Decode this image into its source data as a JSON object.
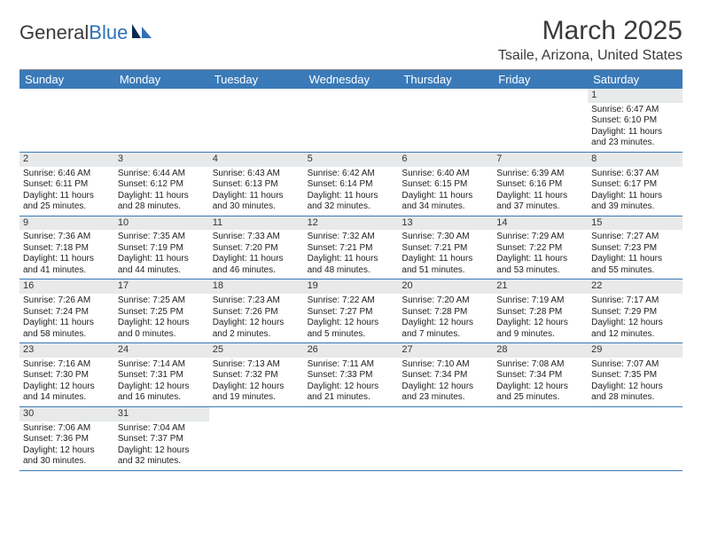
{
  "brand": {
    "word1": "General",
    "word2": "Blue"
  },
  "colors": {
    "header_bg": "#3a7ab8",
    "row_divider": "#3a7ab8",
    "datebar_bg": "#e7e9ea",
    "brand_blue": "#2f71b8",
    "text": "#222222"
  },
  "title": "March 2025",
  "location": "Tsaile, Arizona, United States",
  "day_headers": [
    "Sunday",
    "Monday",
    "Tuesday",
    "Wednesday",
    "Thursday",
    "Friday",
    "Saturday"
  ],
  "weeks": [
    [
      {
        "blank": true
      },
      {
        "blank": true
      },
      {
        "blank": true
      },
      {
        "blank": true
      },
      {
        "blank": true
      },
      {
        "blank": true
      },
      {
        "date": "1",
        "sunrise": "Sunrise: 6:47 AM",
        "sunset": "Sunset: 6:10 PM",
        "day1": "Daylight: 11 hours",
        "day2": "and 23 minutes."
      }
    ],
    [
      {
        "date": "2",
        "sunrise": "Sunrise: 6:46 AM",
        "sunset": "Sunset: 6:11 PM",
        "day1": "Daylight: 11 hours",
        "day2": "and 25 minutes."
      },
      {
        "date": "3",
        "sunrise": "Sunrise: 6:44 AM",
        "sunset": "Sunset: 6:12 PM",
        "day1": "Daylight: 11 hours",
        "day2": "and 28 minutes."
      },
      {
        "date": "4",
        "sunrise": "Sunrise: 6:43 AM",
        "sunset": "Sunset: 6:13 PM",
        "day1": "Daylight: 11 hours",
        "day2": "and 30 minutes."
      },
      {
        "date": "5",
        "sunrise": "Sunrise: 6:42 AM",
        "sunset": "Sunset: 6:14 PM",
        "day1": "Daylight: 11 hours",
        "day2": "and 32 minutes."
      },
      {
        "date": "6",
        "sunrise": "Sunrise: 6:40 AM",
        "sunset": "Sunset: 6:15 PM",
        "day1": "Daylight: 11 hours",
        "day2": "and 34 minutes."
      },
      {
        "date": "7",
        "sunrise": "Sunrise: 6:39 AM",
        "sunset": "Sunset: 6:16 PM",
        "day1": "Daylight: 11 hours",
        "day2": "and 37 minutes."
      },
      {
        "date": "8",
        "sunrise": "Sunrise: 6:37 AM",
        "sunset": "Sunset: 6:17 PM",
        "day1": "Daylight: 11 hours",
        "day2": "and 39 minutes."
      }
    ],
    [
      {
        "date": "9",
        "sunrise": "Sunrise: 7:36 AM",
        "sunset": "Sunset: 7:18 PM",
        "day1": "Daylight: 11 hours",
        "day2": "and 41 minutes."
      },
      {
        "date": "10",
        "sunrise": "Sunrise: 7:35 AM",
        "sunset": "Sunset: 7:19 PM",
        "day1": "Daylight: 11 hours",
        "day2": "and 44 minutes."
      },
      {
        "date": "11",
        "sunrise": "Sunrise: 7:33 AM",
        "sunset": "Sunset: 7:20 PM",
        "day1": "Daylight: 11 hours",
        "day2": "and 46 minutes."
      },
      {
        "date": "12",
        "sunrise": "Sunrise: 7:32 AM",
        "sunset": "Sunset: 7:21 PM",
        "day1": "Daylight: 11 hours",
        "day2": "and 48 minutes."
      },
      {
        "date": "13",
        "sunrise": "Sunrise: 7:30 AM",
        "sunset": "Sunset: 7:21 PM",
        "day1": "Daylight: 11 hours",
        "day2": "and 51 minutes."
      },
      {
        "date": "14",
        "sunrise": "Sunrise: 7:29 AM",
        "sunset": "Sunset: 7:22 PM",
        "day1": "Daylight: 11 hours",
        "day2": "and 53 minutes."
      },
      {
        "date": "15",
        "sunrise": "Sunrise: 7:27 AM",
        "sunset": "Sunset: 7:23 PM",
        "day1": "Daylight: 11 hours",
        "day2": "and 55 minutes."
      }
    ],
    [
      {
        "date": "16",
        "sunrise": "Sunrise: 7:26 AM",
        "sunset": "Sunset: 7:24 PM",
        "day1": "Daylight: 11 hours",
        "day2": "and 58 minutes."
      },
      {
        "date": "17",
        "sunrise": "Sunrise: 7:25 AM",
        "sunset": "Sunset: 7:25 PM",
        "day1": "Daylight: 12 hours",
        "day2": "and 0 minutes."
      },
      {
        "date": "18",
        "sunrise": "Sunrise: 7:23 AM",
        "sunset": "Sunset: 7:26 PM",
        "day1": "Daylight: 12 hours",
        "day2": "and 2 minutes."
      },
      {
        "date": "19",
        "sunrise": "Sunrise: 7:22 AM",
        "sunset": "Sunset: 7:27 PM",
        "day1": "Daylight: 12 hours",
        "day2": "and 5 minutes."
      },
      {
        "date": "20",
        "sunrise": "Sunrise: 7:20 AM",
        "sunset": "Sunset: 7:28 PM",
        "day1": "Daylight: 12 hours",
        "day2": "and 7 minutes."
      },
      {
        "date": "21",
        "sunrise": "Sunrise: 7:19 AM",
        "sunset": "Sunset: 7:28 PM",
        "day1": "Daylight: 12 hours",
        "day2": "and 9 minutes."
      },
      {
        "date": "22",
        "sunrise": "Sunrise: 7:17 AM",
        "sunset": "Sunset: 7:29 PM",
        "day1": "Daylight: 12 hours",
        "day2": "and 12 minutes."
      }
    ],
    [
      {
        "date": "23",
        "sunrise": "Sunrise: 7:16 AM",
        "sunset": "Sunset: 7:30 PM",
        "day1": "Daylight: 12 hours",
        "day2": "and 14 minutes."
      },
      {
        "date": "24",
        "sunrise": "Sunrise: 7:14 AM",
        "sunset": "Sunset: 7:31 PM",
        "day1": "Daylight: 12 hours",
        "day2": "and 16 minutes."
      },
      {
        "date": "25",
        "sunrise": "Sunrise: 7:13 AM",
        "sunset": "Sunset: 7:32 PM",
        "day1": "Daylight: 12 hours",
        "day2": "and 19 minutes."
      },
      {
        "date": "26",
        "sunrise": "Sunrise: 7:11 AM",
        "sunset": "Sunset: 7:33 PM",
        "day1": "Daylight: 12 hours",
        "day2": "and 21 minutes."
      },
      {
        "date": "27",
        "sunrise": "Sunrise: 7:10 AM",
        "sunset": "Sunset: 7:34 PM",
        "day1": "Daylight: 12 hours",
        "day2": "and 23 minutes."
      },
      {
        "date": "28",
        "sunrise": "Sunrise: 7:08 AM",
        "sunset": "Sunset: 7:34 PM",
        "day1": "Daylight: 12 hours",
        "day2": "and 25 minutes."
      },
      {
        "date": "29",
        "sunrise": "Sunrise: 7:07 AM",
        "sunset": "Sunset: 7:35 PM",
        "day1": "Daylight: 12 hours",
        "day2": "and 28 minutes."
      }
    ],
    [
      {
        "date": "30",
        "sunrise": "Sunrise: 7:06 AM",
        "sunset": "Sunset: 7:36 PM",
        "day1": "Daylight: 12 hours",
        "day2": "and 30 minutes."
      },
      {
        "date": "31",
        "sunrise": "Sunrise: 7:04 AM",
        "sunset": "Sunset: 7:37 PM",
        "day1": "Daylight: 12 hours",
        "day2": "and 32 minutes."
      },
      {
        "blank": true
      },
      {
        "blank": true
      },
      {
        "blank": true
      },
      {
        "blank": true
      },
      {
        "blank": true
      }
    ]
  ]
}
